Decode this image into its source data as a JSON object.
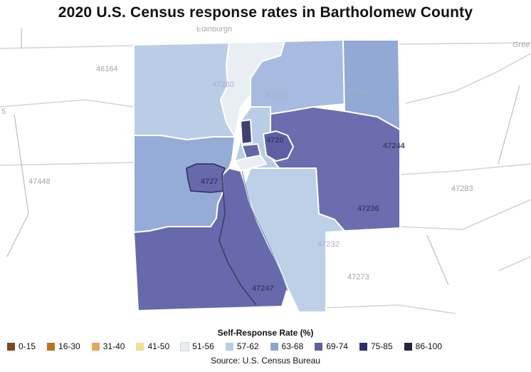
{
  "title": "2020 U.S. Census response rates in Bartholomew County",
  "legend": {
    "title": "Self-Response Rate (%)",
    "items": [
      {
        "label": "0-15",
        "color": "#7a4a1e"
      },
      {
        "label": "16-30",
        "color": "#b8741e"
      },
      {
        "label": "31-40",
        "color": "#e0a85a"
      },
      {
        "label": "41-50",
        "color": "#f0dc98"
      },
      {
        "label": "51-56",
        "color": "#e9eef4"
      },
      {
        "label": "57-62",
        "color": "#b9cde6"
      },
      {
        "label": "63-68",
        "color": "#8ea5d3"
      },
      {
        "label": "69-74",
        "color": "#5d5fa3"
      },
      {
        "label": "75-85",
        "color": "#2e2c6e"
      },
      {
        "label": "86-100",
        "color": "#232540"
      }
    ]
  },
  "source": "Source: U.S. Census Bureau",
  "map": {
    "outside_labels": {
      "zip_46164": "46164",
      "zip_47448": "47448",
      "zip_47283": "47283",
      "zip_47273": "47273",
      "partial_5": "5",
      "partial_green": "Gree",
      "partial_top": "Edinburgh"
    },
    "zip_labels": {
      "zip_47280": "47280",
      "zip_47226": "47226",
      "zip_47246": "47246",
      "zip_47244": "47244",
      "zip_47236": "47236",
      "zip_47232": "47232",
      "zip_47247": "47247",
      "zip_4720": "4720",
      "zip_4727": "4727"
    }
  }
}
